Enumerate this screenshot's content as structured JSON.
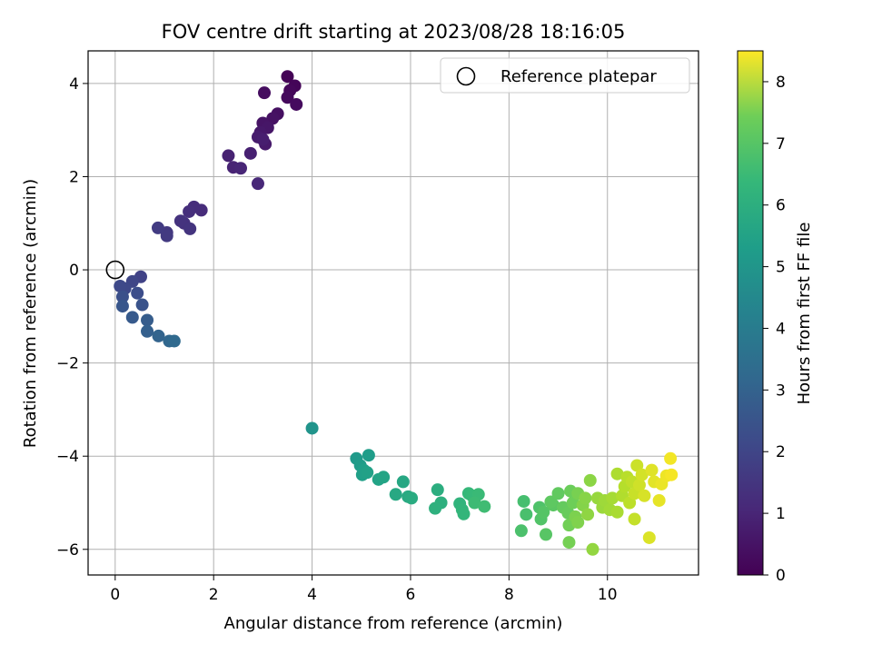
{
  "chart_data": {
    "type": "scatter",
    "title": "FOV centre drift starting at 2023/08/28 18:16:05",
    "xlabel": "Angular distance from reference (arcmin)",
    "ylabel": "Rotation from reference (arcmin)",
    "xlim": [
      -0.55,
      11.85
    ],
    "ylim": [
      -6.55,
      4.7
    ],
    "xticks": [
      0,
      2,
      4,
      6,
      8,
      10
    ],
    "yticks": [
      -6,
      -4,
      -2,
      0,
      2,
      4
    ],
    "grid": true,
    "legend": {
      "placement": "top-right",
      "entries": [
        "Reference platepar"
      ]
    },
    "reference_point": {
      "x": 0,
      "y": 0
    },
    "colorbar": {
      "label": "Hours from first FF file",
      "range": [
        0,
        8.5
      ],
      "ticks": [
        0,
        1,
        2,
        3,
        4,
        5,
        6,
        7,
        8
      ],
      "colormap": "viridis"
    },
    "points": [
      {
        "x": 3.5,
        "y": 4.15,
        "h": 0.05
      },
      {
        "x": 3.65,
        "y": 3.95,
        "h": 0.1
      },
      {
        "x": 3.55,
        "y": 3.85,
        "h": 0.15
      },
      {
        "x": 3.5,
        "y": 3.7,
        "h": 0.2
      },
      {
        "x": 3.68,
        "y": 3.55,
        "h": 0.25
      },
      {
        "x": 3.03,
        "y": 3.8,
        "h": 0.3
      },
      {
        "x": 3.3,
        "y": 3.35,
        "h": 0.35
      },
      {
        "x": 3.2,
        "y": 3.25,
        "h": 0.4
      },
      {
        "x": 3.0,
        "y": 3.15,
        "h": 0.45
      },
      {
        "x": 3.1,
        "y": 3.05,
        "h": 0.5
      },
      {
        "x": 2.95,
        "y": 2.95,
        "h": 0.55
      },
      {
        "x": 3.05,
        "y": 2.7,
        "h": 0.6
      },
      {
        "x": 2.9,
        "y": 2.85,
        "h": 0.65
      },
      {
        "x": 3.0,
        "y": 2.8,
        "h": 0.7
      },
      {
        "x": 2.75,
        "y": 2.5,
        "h": 0.75
      },
      {
        "x": 2.3,
        "y": 2.45,
        "h": 0.8
      },
      {
        "x": 2.4,
        "y": 2.2,
        "h": 0.85
      },
      {
        "x": 2.55,
        "y": 2.18,
        "h": 0.9
      },
      {
        "x": 2.9,
        "y": 1.85,
        "h": 0.95
      },
      {
        "x": 1.75,
        "y": 1.28,
        "h": 1.05
      },
      {
        "x": 1.6,
        "y": 1.35,
        "h": 1.1
      },
      {
        "x": 1.5,
        "y": 1.25,
        "h": 1.15
      },
      {
        "x": 1.4,
        "y": 1.0,
        "h": 1.2
      },
      {
        "x": 1.33,
        "y": 1.05,
        "h": 1.25
      },
      {
        "x": 1.52,
        "y": 0.88,
        "h": 1.3
      },
      {
        "x": 1.05,
        "y": 0.8,
        "h": 1.4
      },
      {
        "x": 1.05,
        "y": 0.73,
        "h": 1.45
      },
      {
        "x": 0.87,
        "y": 0.9,
        "h": 1.5
      },
      {
        "x": 0.52,
        "y": -0.15,
        "h": 1.7
      },
      {
        "x": 0.35,
        "y": -0.25,
        "h": 1.8
      },
      {
        "x": 0.2,
        "y": -0.4,
        "h": 1.85
      },
      {
        "x": 0.1,
        "y": -0.35,
        "h": 1.9
      },
      {
        "x": 0.45,
        "y": -0.5,
        "h": 2.0
      },
      {
        "x": 0.15,
        "y": -0.58,
        "h": 2.1
      },
      {
        "x": 0.55,
        "y": -0.75,
        "h": 2.2
      },
      {
        "x": 0.15,
        "y": -0.78,
        "h": 2.3
      },
      {
        "x": 0.35,
        "y": -1.02,
        "h": 2.4
      },
      {
        "x": 0.65,
        "y": -1.08,
        "h": 2.5
      },
      {
        "x": 0.65,
        "y": -1.32,
        "h": 2.6
      },
      {
        "x": 0.88,
        "y": -1.42,
        "h": 2.7
      },
      {
        "x": 1.1,
        "y": -1.53,
        "h": 2.8
      },
      {
        "x": 1.2,
        "y": -1.53,
        "h": 2.9
      },
      {
        "x": 4.0,
        "y": -3.4,
        "h": 4.4
      },
      {
        "x": 4.9,
        "y": -4.05,
        "h": 4.6
      },
      {
        "x": 4.98,
        "y": -4.2,
        "h": 4.65
      },
      {
        "x": 5.15,
        "y": -3.98,
        "h": 4.7
      },
      {
        "x": 5.05,
        "y": -4.3,
        "h": 4.75
      },
      {
        "x": 5.02,
        "y": -4.4,
        "h": 4.8
      },
      {
        "x": 5.12,
        "y": -4.35,
        "h": 4.85
      },
      {
        "x": 5.35,
        "y": -4.5,
        "h": 4.9
      },
      {
        "x": 5.45,
        "y": -4.45,
        "h": 4.95
      },
      {
        "x": 5.85,
        "y": -4.55,
        "h": 5.05
      },
      {
        "x": 5.7,
        "y": -4.82,
        "h": 5.1
      },
      {
        "x": 5.95,
        "y": -4.87,
        "h": 5.15
      },
      {
        "x": 6.02,
        "y": -4.9,
        "h": 5.2
      },
      {
        "x": 6.55,
        "y": -4.72,
        "h": 5.3
      },
      {
        "x": 6.62,
        "y": -5.0,
        "h": 5.35
      },
      {
        "x": 6.5,
        "y": -5.12,
        "h": 5.4
      },
      {
        "x": 7.0,
        "y": -5.02,
        "h": 5.5
      },
      {
        "x": 7.05,
        "y": -5.15,
        "h": 5.55
      },
      {
        "x": 7.08,
        "y": -5.24,
        "h": 5.6
      },
      {
        "x": 7.18,
        "y": -4.8,
        "h": 5.65
      },
      {
        "x": 7.25,
        "y": -4.85,
        "h": 5.7
      },
      {
        "x": 7.38,
        "y": -4.82,
        "h": 5.75
      },
      {
        "x": 7.3,
        "y": -5.0,
        "h": 5.8
      },
      {
        "x": 7.5,
        "y": -5.08,
        "h": 5.85
      },
      {
        "x": 8.3,
        "y": -4.97,
        "h": 5.95
      },
      {
        "x": 8.35,
        "y": -5.25,
        "h": 6.0
      },
      {
        "x": 8.25,
        "y": -5.6,
        "h": 6.05
      },
      {
        "x": 8.62,
        "y": -5.1,
        "h": 6.1
      },
      {
        "x": 8.65,
        "y": -5.35,
        "h": 6.15
      },
      {
        "x": 8.7,
        "y": -5.2,
        "h": 6.2
      },
      {
        "x": 8.75,
        "y": -5.68,
        "h": 6.25
      },
      {
        "x": 8.9,
        "y": -5.05,
        "h": 6.3
      },
      {
        "x": 8.85,
        "y": -4.98,
        "h": 6.35
      },
      {
        "x": 9.0,
        "y": -4.8,
        "h": 6.4
      },
      {
        "x": 9.1,
        "y": -5.1,
        "h": 6.45
      },
      {
        "x": 9.2,
        "y": -5.22,
        "h": 6.5
      },
      {
        "x": 9.25,
        "y": -4.75,
        "h": 6.55
      },
      {
        "x": 9.3,
        "y": -5.0,
        "h": 6.6
      },
      {
        "x": 9.22,
        "y": -5.48,
        "h": 6.65
      },
      {
        "x": 9.22,
        "y": -5.85,
        "h": 6.7
      },
      {
        "x": 9.4,
        "y": -4.8,
        "h": 6.75
      },
      {
        "x": 9.35,
        "y": -5.3,
        "h": 6.8
      },
      {
        "x": 9.4,
        "y": -5.42,
        "h": 6.85
      },
      {
        "x": 9.5,
        "y": -5.05,
        "h": 6.9
      },
      {
        "x": 9.55,
        "y": -4.9,
        "h": 6.95
      },
      {
        "x": 9.65,
        "y": -4.52,
        "h": 7.0
      },
      {
        "x": 9.6,
        "y": -5.25,
        "h": 7.05
      },
      {
        "x": 9.7,
        "y": -6.0,
        "h": 7.1
      },
      {
        "x": 9.8,
        "y": -4.9,
        "h": 7.15
      },
      {
        "x": 9.9,
        "y": -5.1,
        "h": 7.2
      },
      {
        "x": 9.95,
        "y": -4.95,
        "h": 7.25
      },
      {
        "x": 10.05,
        "y": -5.15,
        "h": 7.3
      },
      {
        "x": 10.1,
        "y": -4.9,
        "h": 7.35
      },
      {
        "x": 10.2,
        "y": -5.2,
        "h": 7.4
      },
      {
        "x": 10.2,
        "y": -4.38,
        "h": 7.45
      },
      {
        "x": 10.3,
        "y": -4.85,
        "h": 7.5
      },
      {
        "x": 10.35,
        "y": -4.65,
        "h": 7.55
      },
      {
        "x": 10.4,
        "y": -4.45,
        "h": 7.6
      },
      {
        "x": 10.45,
        "y": -5.0,
        "h": 7.65
      },
      {
        "x": 10.5,
        "y": -4.55,
        "h": 7.7
      },
      {
        "x": 10.55,
        "y": -5.35,
        "h": 7.75
      },
      {
        "x": 10.55,
        "y": -4.8,
        "h": 7.8
      },
      {
        "x": 10.6,
        "y": -4.2,
        "h": 7.85
      },
      {
        "x": 10.65,
        "y": -4.62,
        "h": 7.9
      },
      {
        "x": 10.7,
        "y": -4.4,
        "h": 7.95
      },
      {
        "x": 10.75,
        "y": -4.85,
        "h": 8.0
      },
      {
        "x": 10.85,
        "y": -5.75,
        "h": 8.05
      },
      {
        "x": 10.9,
        "y": -4.3,
        "h": 8.1
      },
      {
        "x": 10.95,
        "y": -4.55,
        "h": 8.15
      },
      {
        "x": 11.05,
        "y": -4.95,
        "h": 8.2
      },
      {
        "x": 11.1,
        "y": -4.6,
        "h": 8.25
      },
      {
        "x": 11.2,
        "y": -4.42,
        "h": 8.3
      },
      {
        "x": 11.28,
        "y": -4.05,
        "h": 8.35
      },
      {
        "x": 11.3,
        "y": -4.4,
        "h": 8.4
      }
    ]
  }
}
